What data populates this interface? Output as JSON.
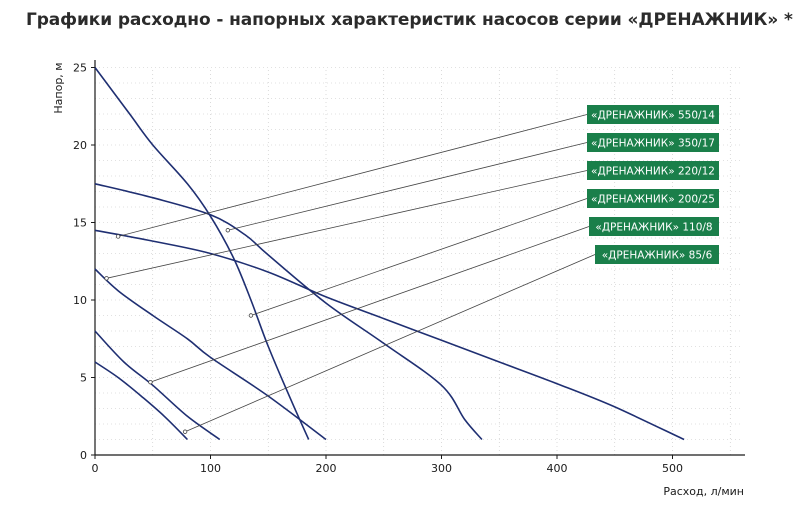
{
  "chart_data": {
    "type": "line",
    "title": "Графики расходно - напорных характеристик насосов серии «ДРЕНАЖНИК» *",
    "xlabel": "Расход, л/мин",
    "ylabel": "Напор, м",
    "xlim": [
      0,
      560
    ],
    "ylim": [
      0,
      25
    ],
    "xticks": [
      0,
      100,
      200,
      300,
      400,
      500
    ],
    "yticks": [
      0,
      5,
      10,
      15,
      20,
      25
    ],
    "grid": true,
    "accent_color": "#1a7f4a",
    "line_color": "#1f2f72",
    "series": [
      {
        "name": "«ДРЕНАЖНИК» 550/14",
        "label_anchor": [
          20,
          14.1
        ],
        "points": [
          [
            0,
            14.5
          ],
          [
            50,
            13.8
          ],
          [
            100,
            13.0
          ],
          [
            150,
            11.8
          ],
          [
            200,
            10.2
          ],
          [
            250,
            8.8
          ],
          [
            300,
            7.4
          ],
          [
            350,
            6.0
          ],
          [
            400,
            4.6
          ],
          [
            450,
            3.1
          ],
          [
            510,
            1.0
          ]
        ]
      },
      {
        "name": "«ДРЕНАЖНИК» 350/17",
        "label_anchor": [
          115,
          14.5
        ],
        "points": [
          [
            0,
            17.5
          ],
          [
            50,
            16.6
          ],
          [
            100,
            15.5
          ],
          [
            130,
            14.2
          ],
          [
            150,
            12.9
          ],
          [
            200,
            9.8
          ],
          [
            250,
            7.2
          ],
          [
            300,
            4.5
          ],
          [
            320,
            2.3
          ],
          [
            335,
            1.0
          ]
        ]
      },
      {
        "name": "«ДРЕНАЖНИК» 220/12",
        "label_anchor": [
          10,
          11.4
        ],
        "points": [
          [
            0,
            12.0
          ],
          [
            20,
            10.6
          ],
          [
            50,
            9.0
          ],
          [
            80,
            7.5
          ],
          [
            100,
            6.3
          ],
          [
            150,
            3.8
          ],
          [
            200,
            1.0
          ]
        ]
      },
      {
        "name": "«ДРЕНАЖНИК» 200/25",
        "label_anchor": [
          135,
          9.0
        ],
        "points": [
          [
            0,
            25.0
          ],
          [
            30,
            22.0
          ],
          [
            50,
            20.0
          ],
          [
            80,
            17.5
          ],
          [
            100,
            15.4
          ],
          [
            120,
            12.7
          ],
          [
            135,
            10.0
          ],
          [
            150,
            7.0
          ],
          [
            170,
            3.5
          ],
          [
            185,
            1.0
          ]
        ]
      },
      {
        "name": "«ДРЕНАЖНИК» 110/8",
        "label_anchor": [
          48,
          4.7
        ],
        "points": [
          [
            0,
            8.0
          ],
          [
            25,
            6.0
          ],
          [
            50,
            4.5
          ],
          [
            80,
            2.5
          ],
          [
            108,
            1.0
          ]
        ]
      },
      {
        "name": "«ДРЕНАЖНИК» 85/6",
        "label_anchor": [
          78,
          1.5
        ],
        "points": [
          [
            0,
            6.0
          ],
          [
            20,
            5.0
          ],
          [
            40,
            3.8
          ],
          [
            60,
            2.5
          ],
          [
            80,
            1.0
          ]
        ]
      }
    ]
  }
}
